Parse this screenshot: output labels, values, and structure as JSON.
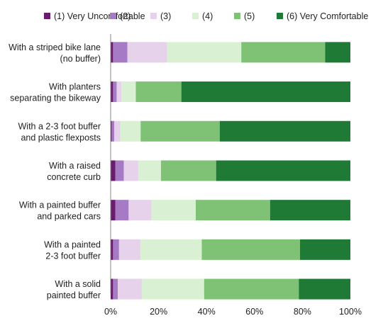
{
  "chart_data": {
    "type": "bar",
    "orientation": "horizontal",
    "stacked": true,
    "categories": [
      "With a striped bike lane (no buffer)",
      "With planters separating the bikeway",
      "With a 2-3 foot buffer and plastic flexposts",
      "With a raised concrete curb",
      "With a painted buffer and parked cars",
      "With a painted 2-3 foot buffer",
      "With a solid painted buffer"
    ],
    "category_lines": [
      [
        "With a striped bike lane",
        "(no buffer)"
      ],
      [
        "With planters",
        "separating the bikeway"
      ],
      [
        "With a 2-3 foot buffer",
        "and plastic flexposts"
      ],
      [
        "With a raised",
        "concrete curb"
      ],
      [
        "With a painted buffer",
        "and parked cars"
      ],
      [
        "With a painted",
        "2-3 foot buffer"
      ],
      [
        "With a solid",
        "painted buffer"
      ]
    ],
    "series": [
      {
        "name": "(1) Very Uncomfortable",
        "color": "#6a1b6f",
        "values": [
          1,
          1,
          0.5,
          2,
          2,
          1,
          1
        ]
      },
      {
        "name": "(2)",
        "color": "#a67ac4",
        "values": [
          6,
          1.5,
          1,
          3.5,
          5.5,
          2.5,
          2
        ]
      },
      {
        "name": "(3)",
        "color": "#e6d2ea",
        "values": [
          16.5,
          2,
          2.5,
          6,
          9.5,
          9,
          10
        ]
      },
      {
        "name": "(4)",
        "color": "#d9f1d2",
        "values": [
          31,
          6,
          8.5,
          9.5,
          18.5,
          25.5,
          26
        ]
      },
      {
        "name": "(5)",
        "color": "#7fc276",
        "values": [
          35,
          19,
          33,
          23,
          31,
          41,
          39.5
        ]
      },
      {
        "name": "(6) Very Comfortable",
        "color": "#1e7a35",
        "values": [
          10.5,
          70.5,
          54.5,
          56,
          33.5,
          21,
          21.5
        ]
      }
    ],
    "x_ticks": [
      "0%",
      "20%",
      "40%",
      "60%",
      "80%",
      "100%"
    ],
    "xlim": [
      0,
      100
    ],
    "legend_position": "top",
    "grid": false
  }
}
